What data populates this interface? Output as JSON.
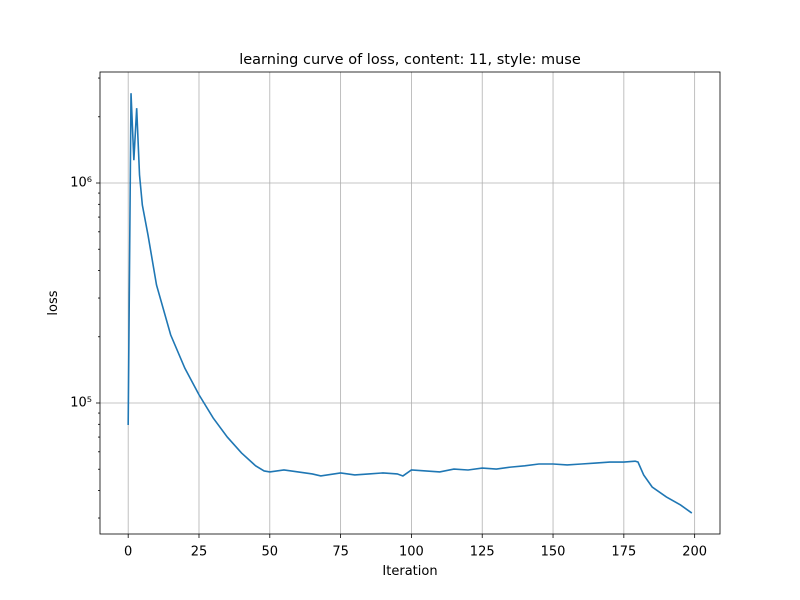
{
  "chart_data": {
    "type": "line",
    "title": "learning curve of loss, content: 11, style: muse",
    "x_label": "Iteration",
    "y_label": "loss",
    "x": [
      0,
      1,
      2,
      3,
      4,
      5,
      7,
      10,
      15,
      20,
      25,
      30,
      35,
      40,
      45,
      48,
      50,
      55,
      60,
      65,
      68,
      75,
      80,
      85,
      90,
      95,
      97,
      100,
      105,
      110,
      115,
      120,
      125,
      130,
      135,
      140,
      145,
      150,
      155,
      160,
      165,
      170,
      175,
      179,
      180,
      182,
      185,
      190,
      195,
      199
    ],
    "series": [
      {
        "name": "loss",
        "color": "#1f77b4",
        "values": [
          79400,
          2560000,
          1270000,
          2190000,
          1090000,
          794000,
          580000,
          344000,
          204000,
          144000,
          109000,
          85500,
          70000,
          59300,
          51800,
          49100,
          48600,
          49600,
          48600,
          47600,
          46600,
          48100,
          47100,
          47600,
          48100,
          47600,
          46600,
          49600,
          49100,
          48600,
          50100,
          49600,
          50600,
          50100,
          51100,
          51800,
          52800,
          52800,
          52300,
          52800,
          53300,
          53900,
          53900,
          54400,
          53900,
          47100,
          41500,
          37400,
          34400,
          31600
        ]
      }
    ],
    "xlim": [
      -9.95,
      208.95
    ],
    "xticks": [
      0,
      25,
      50,
      75,
      100,
      125,
      150,
      175,
      200
    ],
    "ylim": [
      25380,
      3196000
    ],
    "yscale": "log",
    "yticks": [
      {
        "value": 100000,
        "label": "10⁵"
      },
      {
        "value": 1000000,
        "label": "10⁶"
      }
    ],
    "yminorticks": [
      30000,
      40000,
      50000,
      60000,
      70000,
      80000,
      90000,
      200000,
      300000,
      400000,
      500000,
      600000,
      700000,
      800000,
      900000,
      2000000,
      3000000
    ],
    "grid": true
  }
}
